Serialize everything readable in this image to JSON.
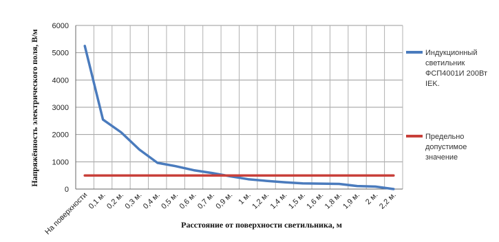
{
  "chart_data": {
    "type": "line",
    "ylabel": "Напряжённость электрического поля, В/м",
    "xlabel": "Расстояние от поверхности светильника, м",
    "categories": [
      "На поверхности",
      "0,1 м.",
      "0,2 м.",
      "0,3 м.",
      "0,4 м.",
      "0,5 м.",
      "0,6 м.",
      "0,7 м.",
      "0,9 м.",
      "1 м.",
      "1,2 м.",
      "1,4 м.",
      "1,5 м.",
      "1,6 м.",
      "1,8 м.",
      "1,9 м.",
      "2 м.",
      "2,2 м."
    ],
    "yticks": [
      0,
      1000,
      2000,
      3000,
      4000,
      5000,
      6000
    ],
    "ylim": [
      0,
      6000
    ],
    "grid": "vertical lines at categories, horizontal at y ticks",
    "legend_position": "right",
    "series": [
      {
        "name": "Индукционный светильник ФСП4001И 200Вт IEK.",
        "color": "#4a7bbd",
        "values": [
          5250,
          2550,
          2080,
          1450,
          960,
          840,
          690,
          590,
          470,
          360,
          300,
          250,
          210,
          200,
          190,
          110,
          90,
          0
        ]
      },
      {
        "name": "Предельно допустимое значение",
        "color": "#c8403a",
        "values": [
          500,
          500,
          500,
          500,
          500,
          500,
          500,
          500,
          500,
          500,
          500,
          500,
          500,
          500,
          500,
          500,
          500,
          500
        ]
      }
    ],
    "legend_lines": [
      [
        "Индукционный",
        "светильник",
        "ФСП4001И 200Вт",
        "IEK."
      ],
      [
        "Предельно",
        "допустимое",
        "значение"
      ]
    ]
  }
}
